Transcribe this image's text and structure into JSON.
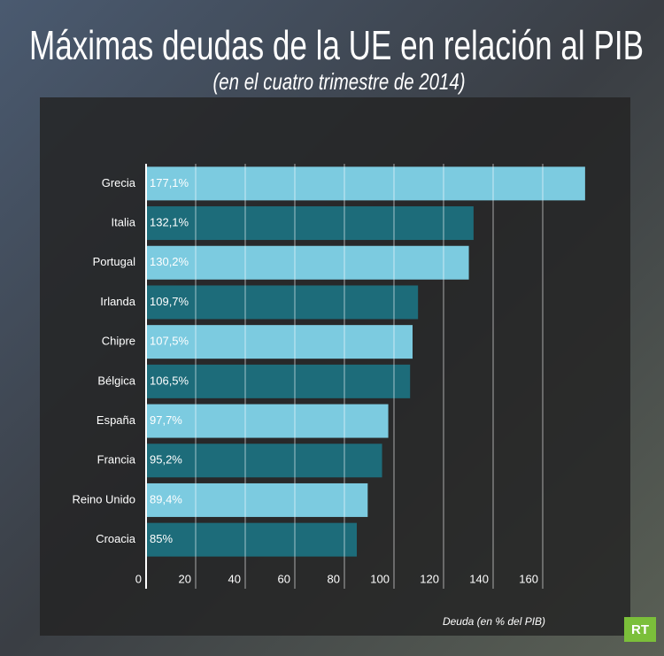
{
  "chart_data": {
    "type": "bar",
    "orientation": "horizontal",
    "title": "Máximas deudas de la UE en relación al PIB",
    "subtitle": "(en el cuatro trimestre de 2014)",
    "categories": [
      "Grecia",
      "Italia",
      "Portugal",
      "Irlanda",
      "Chipre",
      "Bélgica",
      "España",
      "Francia",
      "Reino Unido",
      "Croacia"
    ],
    "values": [
      177.1,
      132.1,
      130.2,
      109.7,
      107.5,
      106.5,
      97.7,
      95.2,
      89.4,
      85
    ],
    "value_labels": [
      "177,1%",
      "132,1%",
      "130,2%",
      "109,7%",
      "107,5%",
      "106,5%",
      "97,7%",
      "95,2%",
      "89,4%",
      "85%"
    ],
    "colors": [
      "#7ccbe0",
      "#1d6c7a",
      "#7ccbe0",
      "#1d6c7a",
      "#7ccbe0",
      "#1d6c7a",
      "#7ccbe0",
      "#1d6c7a",
      "#7ccbe0",
      "#1d6c7a"
    ],
    "xlim": [
      0,
      190
    ],
    "xticks": [
      0,
      20,
      40,
      60,
      80,
      100,
      120,
      140,
      160
    ],
    "xlabel": "Deuda (en % del PIB)",
    "grid": true,
    "logo": "RT"
  }
}
